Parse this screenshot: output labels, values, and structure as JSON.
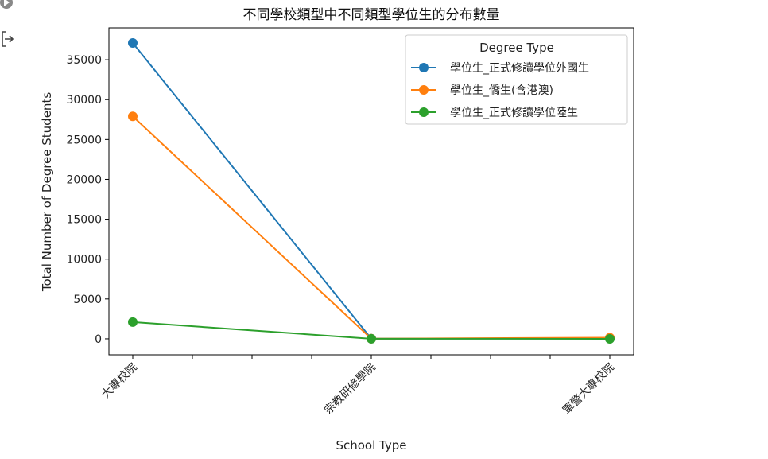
{
  "icons": {
    "run": "run-cell-icon",
    "output": "output-toggle-icon"
  },
  "colors": {
    "series": [
      "#1f77b4",
      "#ff7f0e",
      "#2ca02c"
    ]
  },
  "chart_data": {
    "type": "line",
    "title": "不同學校類型中不同類型學位生的分布數量",
    "xlabel": "School Type",
    "ylabel": "Total Number of Degree Students",
    "categories": [
      "大專校院",
      "宗教研修學院",
      "軍警大專校院"
    ],
    "ylim": [
      -2000,
      39000
    ],
    "yticks": [
      0,
      5000,
      10000,
      15000,
      20000,
      25000,
      30000,
      35000
    ],
    "legend": {
      "title": "Degree Type",
      "placement": "top-right"
    },
    "grid": false,
    "series": [
      {
        "name": "學位生_正式修讀學位外國生",
        "values": [
          37100,
          20,
          40
        ]
      },
      {
        "name": "學位生_僑生(含港澳)",
        "values": [
          27900,
          20,
          150
        ]
      },
      {
        "name": "學位生_正式修讀學位陸生",
        "values": [
          2100,
          10,
          0
        ]
      }
    ]
  }
}
